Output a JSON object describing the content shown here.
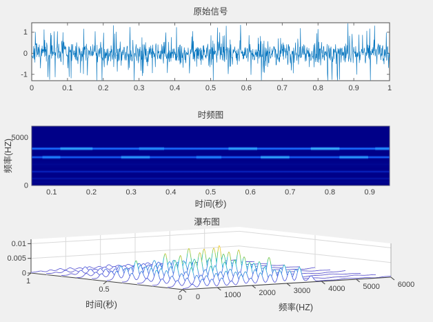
{
  "figure": {
    "bg": "#f0f0f0",
    "text_color": "#404040",
    "axes_frame_color": "#4d4d4d",
    "wall_color": "#ffffff",
    "grid_color": "#d9d9d9"
  },
  "chart_data": [
    {
      "type": "line",
      "id": "original-signal",
      "title": "原始信号",
      "color": "#0072BD",
      "xlim": [
        0,
        1
      ],
      "ylim": [
        -1.3,
        1.45
      ],
      "xticks": [
        0,
        0.1,
        0.2,
        0.3,
        0.4,
        0.5,
        0.6,
        0.7,
        0.8,
        0.9,
        1
      ],
      "yticks": [
        -1,
        0,
        1
      ],
      "n_samples": 1100,
      "noise_scale": 0.42,
      "spike_prob": 0.1,
      "seed": 7,
      "description": "dense zero-mean random noise signal spanning roughly -1.2 to 1.4"
    },
    {
      "type": "heatmap",
      "id": "spectrogram",
      "title": "时频图",
      "xlabel": "时间(秒)",
      "ylabel": "频率(HZ)",
      "xlim": [
        0.05,
        0.95
      ],
      "ylim": [
        0,
        6200
      ],
      "xticks": [
        0.1,
        0.2,
        0.3,
        0.4,
        0.5,
        0.6,
        0.7,
        0.8,
        0.9
      ],
      "yticks": [
        0,
        5000
      ],
      "bg_color": "#000088",
      "bands": [
        {
          "freq": 3850,
          "intensity": 1.0,
          "color": "#1a6dff",
          "half_width_hz": 180
        },
        {
          "freq": 2950,
          "intensity": 0.9,
          "color": "#1459f0",
          "half_width_hz": 190
        },
        {
          "freq": 1450,
          "intensity": 0.45,
          "color": "#0b2fd0",
          "half_width_hz": 200
        },
        {
          "freq": 720,
          "intensity": 0.35,
          "color": "#0a23bc",
          "half_width_hz": 190
        },
        {
          "freq": 2200,
          "intensity": 0.18,
          "color": "#0516a8",
          "half_width_hz": 420
        },
        {
          "freq": 350,
          "intensity": 0.16,
          "color": "#0414a4",
          "half_width_hz": 260
        }
      ],
      "bright_segments": [
        {
          "freq": 3850,
          "x0": 0.08,
          "x1": 0.17,
          "color": "#2fa8ff"
        },
        {
          "freq": 3850,
          "x0": 0.3,
          "x1": 0.37,
          "color": "#2490ff"
        },
        {
          "freq": 3850,
          "x0": 0.55,
          "x1": 0.63,
          "color": "#2fa8ff"
        },
        {
          "freq": 3850,
          "x0": 0.78,
          "x1": 0.86,
          "color": "#3ab4ff"
        },
        {
          "freq": 3850,
          "x0": 0.96,
          "x1": 1.0,
          "color": "#2490ff"
        },
        {
          "freq": 2950,
          "x0": 0.03,
          "x1": 0.08,
          "color": "#1f82ff"
        },
        {
          "freq": 2950,
          "x0": 0.25,
          "x1": 0.33,
          "color": "#2a9bff"
        },
        {
          "freq": 2950,
          "x0": 0.46,
          "x1": 0.53,
          "color": "#1f82ff"
        },
        {
          "freq": 2950,
          "x0": 0.64,
          "x1": 0.72,
          "color": "#2fa8ff"
        },
        {
          "freq": 2950,
          "x0": 0.86,
          "x1": 0.94,
          "color": "#2a9bff"
        }
      ]
    },
    {
      "type": "waterfall3d",
      "id": "waterfall",
      "title": "瀑布图",
      "xlabel": "频率(HZ)",
      "ylabel": "时间(秒)",
      "xlim": [
        0,
        6000
      ],
      "ylim": [
        0,
        1
      ],
      "zlim": [
        0,
        0.0115
      ],
      "xticks": [
        0,
        1000,
        2000,
        3000,
        4000,
        5000,
        6000
      ],
      "yticks": [
        1,
        0.5,
        0
      ],
      "zticks": [
        0,
        0.005,
        0.01
      ],
      "peak_freqs": [
        280,
        560,
        840,
        1120,
        1400,
        1680,
        1960,
        2240,
        2520,
        2800,
        3080,
        3360,
        3700
      ],
      "peak_heights": [
        0.0025,
        0.0038,
        0.0048,
        0.0058,
        0.0042,
        0.0062,
        0.0048,
        0.0068,
        0.0052,
        0.0095,
        0.0065,
        0.0072,
        0.004
      ],
      "times": [
        1,
        0.9,
        0.8,
        0.7,
        0.6,
        0.5,
        0.4,
        0.3,
        0.2,
        0.1,
        0
      ],
      "trace_gains": [
        0.12,
        0.22,
        0.28,
        0.45,
        0.72,
        1.0,
        0.95,
        0.85,
        0.75,
        0.65,
        0.55
      ],
      "peak_sigma_hz": 60,
      "colormap": [
        "#635bd2",
        "#4f63e0",
        "#3d8be2",
        "#21b8cf",
        "#52c76a",
        "#b4c93e",
        "#eac633",
        "#f6d23c"
      ]
    }
  ]
}
